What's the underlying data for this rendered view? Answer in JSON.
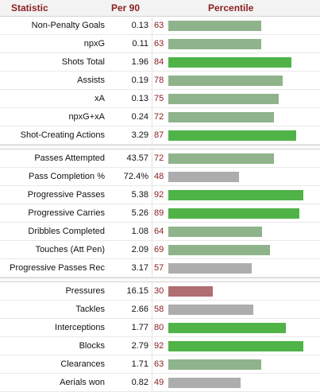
{
  "header": {
    "statistic": "Statistic",
    "per90": "Per 90",
    "percentile": "Percentile"
  },
  "colors": {
    "high": "#4fb348",
    "mid": "#8fb38a",
    "low": "#adadad",
    "poor": "#b06d72"
  },
  "groups": [
    [
      {
        "stat": "Non-Penalty Goals",
        "per90": "0.13",
        "pct": 63
      },
      {
        "stat": "npxG",
        "per90": "0.11",
        "pct": 63
      },
      {
        "stat": "Shots Total",
        "per90": "1.96",
        "pct": 84
      },
      {
        "stat": "Assists",
        "per90": "0.19",
        "pct": 78
      },
      {
        "stat": "xA",
        "per90": "0.13",
        "pct": 75
      },
      {
        "stat": "npxG+xA",
        "per90": "0.24",
        "pct": 72
      },
      {
        "stat": "Shot-Creating Actions",
        "per90": "3.29",
        "pct": 87
      }
    ],
    [
      {
        "stat": "Passes Attempted",
        "per90": "43.57",
        "pct": 72
      },
      {
        "stat": "Pass Completion %",
        "per90": "72.4%",
        "pct": 48
      },
      {
        "stat": "Progressive Passes",
        "per90": "5.38",
        "pct": 92
      },
      {
        "stat": "Progressive Carries",
        "per90": "5.26",
        "pct": 89
      },
      {
        "stat": "Dribbles Completed",
        "per90": "1.08",
        "pct": 64
      },
      {
        "stat": "Touches (Att Pen)",
        "per90": "2.09",
        "pct": 69
      },
      {
        "stat": "Progressive Passes Rec",
        "per90": "3.17",
        "pct": 57
      }
    ],
    [
      {
        "stat": "Pressures",
        "per90": "16.15",
        "pct": 30
      },
      {
        "stat": "Tackles",
        "per90": "2.66",
        "pct": 58
      },
      {
        "stat": "Interceptions",
        "per90": "1.77",
        "pct": 80
      },
      {
        "stat": "Blocks",
        "per90": "2.79",
        "pct": 92
      },
      {
        "stat": "Clearances",
        "per90": "1.71",
        "pct": 63
      },
      {
        "stat": "Aerials won",
        "per90": "0.82",
        "pct": 49
      }
    ]
  ],
  "chart_data": {
    "type": "bar",
    "categories": [
      "Non-Penalty Goals",
      "npxG",
      "Shots Total",
      "Assists",
      "xA",
      "npxG+xA",
      "Shot-Creating Actions",
      "Passes Attempted",
      "Pass Completion %",
      "Progressive Passes",
      "Progressive Carries",
      "Dribbles Completed",
      "Touches (Att Pen)",
      "Progressive Passes Rec",
      "Pressures",
      "Tackles",
      "Interceptions",
      "Blocks",
      "Clearances",
      "Aerials won"
    ],
    "values": [
      63,
      63,
      84,
      78,
      75,
      72,
      87,
      72,
      48,
      92,
      89,
      64,
      69,
      57,
      30,
      58,
      80,
      92,
      63,
      49
    ],
    "ylim": [
      0,
      100
    ]
  }
}
